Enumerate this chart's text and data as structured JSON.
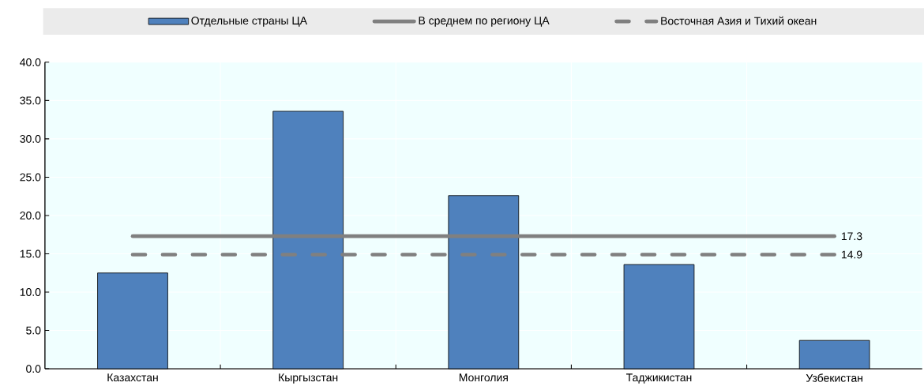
{
  "chart_data": {
    "type": "bar",
    "categories": [
      "Казахстан",
      "Кыргызстан",
      "Монголия",
      "Таджикистан",
      "Узбекистан"
    ],
    "series": [
      {
        "name": "Отдельные страны ЦА",
        "color": "#4f81bd",
        "values": [
          12.5,
          33.6,
          22.6,
          13.6,
          3.7
        ]
      },
      {
        "name": "В среднем по региону ЦА",
        "type": "line",
        "color": "#808080",
        "line_style": "solid",
        "values": [
          17.3,
          17.3,
          17.3,
          17.3,
          17.3
        ],
        "value_labels": [
          null,
          null,
          null,
          null,
          "17.3"
        ]
      },
      {
        "name": "Восточная Азия и Тихий океан",
        "type": "line",
        "color": "#808080",
        "line_style": "dashed",
        "values": [
          14.9,
          14.9,
          14.9,
          14.9,
          14.9
        ],
        "value_labels": [
          null,
          null,
          null,
          null,
          "14.9"
        ]
      }
    ],
    "ylim": [
      0,
      40
    ],
    "yticks": [
      {
        "value": 0,
        "label": "0.0"
      },
      {
        "value": 5,
        "label": "5.0"
      },
      {
        "value": 10,
        "label": "10.0"
      },
      {
        "value": 15,
        "label": "15.0"
      },
      {
        "value": 20,
        "label": "20.0"
      },
      {
        "value": 25,
        "label": "25.0"
      },
      {
        "value": 30,
        "label": "30.0"
      },
      {
        "value": 35,
        "label": "35.0"
      },
      {
        "value": 40,
        "label": "40.0"
      }
    ],
    "grid": true,
    "legend": "top"
  }
}
